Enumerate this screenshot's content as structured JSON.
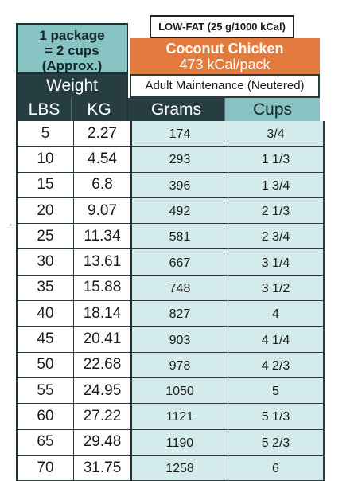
{
  "left_header": {
    "package_line1": "1 package",
    "package_line2": "= 2 cups",
    "package_line3": "(Approx.)",
    "weight_label": "Weight",
    "col_lbs": "LBS",
    "col_kg": "KG"
  },
  "right_header": {
    "fat_badge": "LOW-FAT (25 g/1000 kCal)",
    "recipe_name": "Coconut Chicken",
    "calories": "473 kCal/pack",
    "life_stage": "Adult Maintenance (Neutered)",
    "col_grams": "Grams",
    "col_cups": "Cups"
  },
  "rows": [
    {
      "lbs": "5",
      "kg": "2.27",
      "grams": "174",
      "cups": "3/4"
    },
    {
      "lbs": "10",
      "kg": "4.54",
      "grams": "293",
      "cups": "1 1/3"
    },
    {
      "lbs": "15",
      "kg": "6.8",
      "grams": "396",
      "cups": "1 3/4"
    },
    {
      "lbs": "20",
      "kg": "9.07",
      "grams": "492",
      "cups": "2 1/3"
    },
    {
      "lbs": "25",
      "kg": "11.34",
      "grams": "581",
      "cups": "2 3/4"
    },
    {
      "lbs": "30",
      "kg": "13.61",
      "grams": "667",
      "cups": "3 1/4"
    },
    {
      "lbs": "35",
      "kg": "15.88",
      "grams": "748",
      "cups": "3 1/2"
    },
    {
      "lbs": "40",
      "kg": "18.14",
      "grams": "827",
      "cups": "4"
    },
    {
      "lbs": "45",
      "kg": "20.41",
      "grams": "903",
      "cups": "4 1/4"
    },
    {
      "lbs": "50",
      "kg": "22.68",
      "grams": "978",
      "cups": "4 2/3"
    },
    {
      "lbs": "55",
      "kg": "24.95",
      "grams": "1050",
      "cups": "5"
    },
    {
      "lbs": "60",
      "kg": "27.22",
      "grams": "1121",
      "cups": "5 1/3"
    },
    {
      "lbs": "65",
      "kg": "29.48",
      "grams": "1190",
      "cups": "5 2/3"
    },
    {
      "lbs": "70",
      "kg": "31.75",
      "grams": "1258",
      "cups": "6"
    }
  ],
  "colors": {
    "teal_header": "#86c3c2",
    "dark_header": "#263d41",
    "orange": "#e37b3e",
    "light_teal_cells": "#d3eceb"
  },
  "icons": {
    "side_arrow": "left-arrow-icon"
  }
}
